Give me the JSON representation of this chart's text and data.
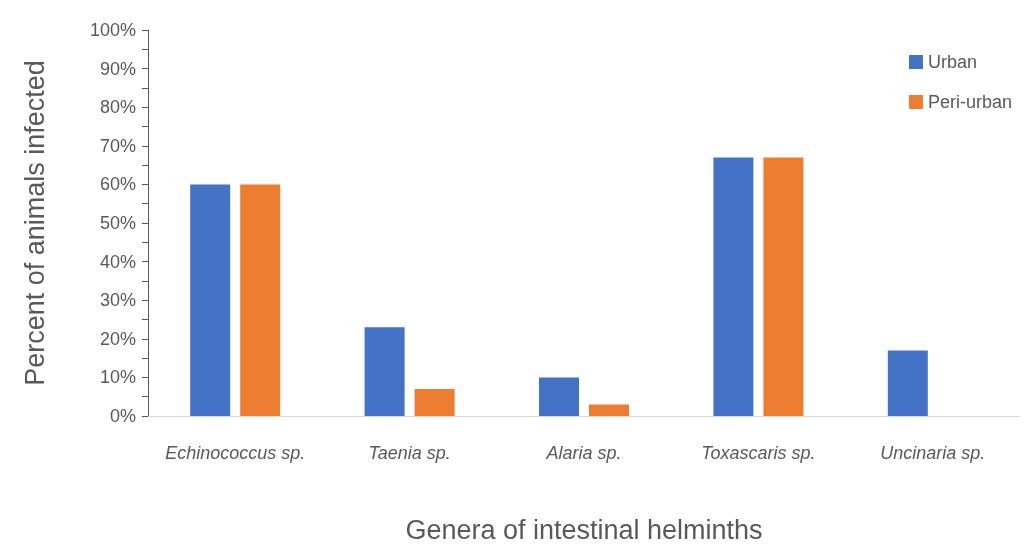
{
  "chart_data": {
    "type": "bar",
    "xlabel": "Genera of intestinal helminths",
    "ylabel": "Percent of animals infected",
    "categories": [
      "Echinococcus sp.",
      "Taenia sp.",
      "Alaria sp.",
      "Toxascaris sp.",
      "Uncinaria sp."
    ],
    "series": [
      {
        "name": "Urban",
        "color": "#4472c4",
        "values": [
          60,
          23,
          10,
          67,
          17
        ]
      },
      {
        "name": "Peri-urban",
        "color": "#ed7d31",
        "values": [
          60,
          7,
          3,
          67,
          0
        ]
      }
    ],
    "ylim": [
      0,
      100
    ],
    "yticks": [
      {
        "value": 0,
        "label": "0%"
      },
      {
        "value": 5,
        "label": null
      },
      {
        "value": 10,
        "label": "10%"
      },
      {
        "value": 15,
        "label": null
      },
      {
        "value": 20,
        "label": "20%"
      },
      {
        "value": 25,
        "label": null
      },
      {
        "value": 30,
        "label": "30%"
      },
      {
        "value": 35,
        "label": null
      },
      {
        "value": 40,
        "label": "40%"
      },
      {
        "value": 45,
        "label": null
      },
      {
        "value": 50,
        "label": "50%"
      },
      {
        "value": 55,
        "label": null
      },
      {
        "value": 60,
        "label": "60%"
      },
      {
        "value": 65,
        "label": null
      },
      {
        "value": 70,
        "label": "70%"
      },
      {
        "value": 75,
        "label": null
      },
      {
        "value": 80,
        "label": "80%"
      },
      {
        "value": 85,
        "label": null
      },
      {
        "value": 90,
        "label": "90%"
      },
      {
        "value": 95,
        "label": null
      },
      {
        "value": 100,
        "label": "100%"
      }
    ],
    "grid": false,
    "legend": "top right"
  }
}
